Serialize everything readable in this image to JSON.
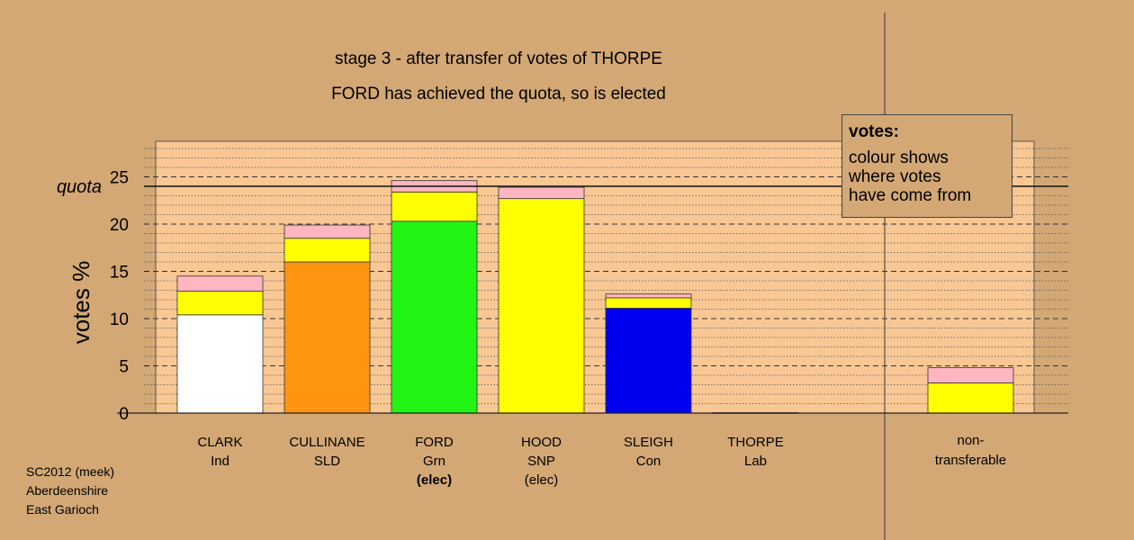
{
  "titles": {
    "line1": "stage 3 - after transfer of votes of THORPE",
    "line2": "FORD has achieved the quota, so is elected"
  },
  "legend": {
    "heading": "votes:",
    "text": "colour shows where votes have come from",
    "lines": [
      "colour shows",
      "where votes",
      "have come from"
    ]
  },
  "footer": {
    "line1": "SC2012 (meek)",
    "line2": "Aberdeenshire",
    "line3": "East Garioch"
  },
  "colors": {
    "background": "#d3a875",
    "plot_background": "#f8c793",
    "white": "#ffffff",
    "orange": "#ff9410",
    "green": "#22f514",
    "yellow": "#ffff00",
    "blue": "#0000f0",
    "pink": "#ffb6c1"
  },
  "chart_data": {
    "type": "bar",
    "stacked": true,
    "ylabel": "votes %",
    "ylim": [
      0,
      28
    ],
    "yticks": [
      0,
      5,
      10,
      15,
      20,
      25
    ],
    "quota": 24,
    "quota_label": "quota",
    "grid": true,
    "legend_placement": "top-right",
    "categories": [
      {
        "name": "CLARK",
        "party": "Ind",
        "status": ""
      },
      {
        "name": "CULLINANE",
        "party": "SLD",
        "status": ""
      },
      {
        "name": "FORD",
        "party": "Grn",
        "status": "(elec)",
        "status_bold": true
      },
      {
        "name": "HOOD",
        "party": "SNP",
        "status": "(elec)",
        "status_bold": false
      },
      {
        "name": "SLEIGH",
        "party": "Con",
        "status": ""
      },
      {
        "name": "THORPE",
        "party": "Lab",
        "status": ""
      }
    ],
    "bars": [
      {
        "segments": [
          {
            "color": "#ffffff",
            "value": 10.4
          },
          {
            "color": "#ffff00",
            "value": 2.5
          },
          {
            "color": "#ffb6c1",
            "value": 1.6
          }
        ]
      },
      {
        "segments": [
          {
            "color": "#ff9410",
            "value": 16.0
          },
          {
            "color": "#ffff00",
            "value": 2.5
          },
          {
            "color": "#ffb6c1",
            "value": 1.4
          }
        ]
      },
      {
        "segments": [
          {
            "color": "#22f514",
            "value": 20.3
          },
          {
            "color": "#ffff00",
            "value": 3.1
          },
          {
            "color": "#ffb6c1",
            "value": 1.2
          }
        ]
      },
      {
        "segments": [
          {
            "color": "#ffff00",
            "value": 22.7
          },
          {
            "color": "#ffb6c1",
            "value": 1.2
          }
        ]
      },
      {
        "segments": [
          {
            "color": "#0000f0",
            "value": 11.1
          },
          {
            "color": "#ffff00",
            "value": 1.1
          },
          {
            "color": "#ffb6c1",
            "value": 0.4
          }
        ]
      },
      {
        "segments": [
          {
            "color": "#ffb6c1",
            "value": 0.05
          }
        ]
      }
    ],
    "nontransferable": {
      "label": "non-transferable",
      "label_lines": [
        "non-",
        "transferable"
      ],
      "segments": [
        {
          "color": "#ffff00",
          "value": 3.2
        },
        {
          "color": "#ffb6c1",
          "value": 1.6
        }
      ]
    }
  }
}
